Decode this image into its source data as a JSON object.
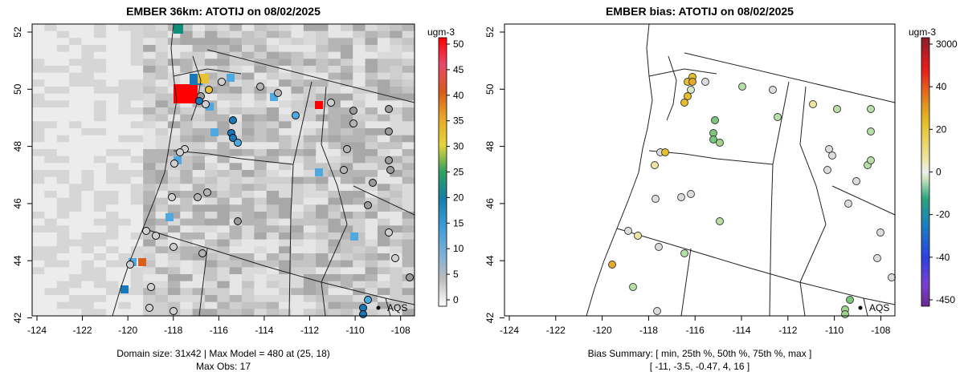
{
  "left_panel": {
    "title": "EMBER 36km: ATOTIJ on 08/02/2025",
    "colorbar_title": "ugm-3",
    "colorbar_ticks": [
      "50",
      "45",
      "40",
      "35",
      "30",
      "25",
      "20",
      "15",
      "10",
      "5",
      "0"
    ],
    "x_ticks": [
      "-124",
      "-122",
      "-120",
      "-118",
      "-116",
      "-114",
      "-112",
      "-110",
      "-108"
    ],
    "y_ticks": [
      "52",
      "50",
      "48",
      "46",
      "44",
      "42"
    ],
    "legend_label": "AQS",
    "footer_line1": "Domain size: 31x42 | Max Model = 480 at (25, 18)",
    "footer_line2": "Max Obs: 17"
  },
  "right_panel": {
    "title": "EMBER bias: ATOTIJ on 08/02/2025",
    "colorbar_title": "ugm-3",
    "colorbar_ticks": [
      "3000",
      "40",
      "20",
      "0",
      "-20",
      "-40",
      "-450"
    ],
    "x_ticks": [
      "-124",
      "-122",
      "-120",
      "-118",
      "-116",
      "-114",
      "-112",
      "-110",
      "-108"
    ],
    "y_ticks": [
      "52",
      "50",
      "48",
      "46",
      "44",
      "42"
    ],
    "legend_label": "AQS",
    "footer_line1": "Bias Summary: [ min, 25th %, 50th %, 75th %, max ]",
    "footer_line2": "[ -11,   -3.5,   -0.47,   4,   16 ]"
  },
  "colors": {
    "model_scale": [
      "#f2f2f2",
      "#d0d0d0",
      "#b5b5b5",
      "#9a9a9a",
      "#4fa9e0",
      "#1a78b8",
      "#0f8f7a",
      "#e9c33a",
      "#e89b1e",
      "#d95f1d",
      "#ff0000"
    ],
    "bias_positive": "#e8c93a",
    "bias_zero": "#dcdcdc",
    "bias_negative": "#8fcf7a"
  }
}
